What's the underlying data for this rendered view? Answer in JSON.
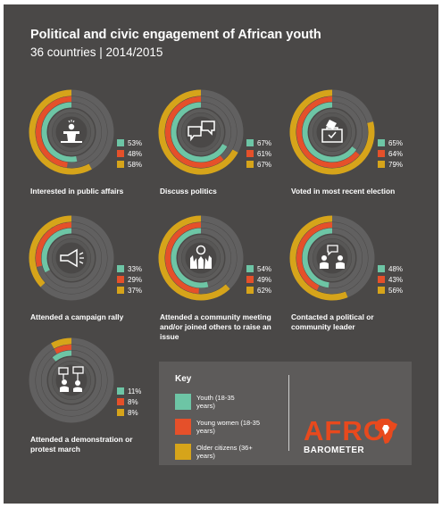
{
  "title": "Political and civic engagement of African youth",
  "subtitle": "36 countries | 2014/2015",
  "colors": {
    "background": "#4a4847",
    "youth": "#6dc5a5",
    "young_women": "#e5502a",
    "older": "#d6a41a",
    "track": "#616060"
  },
  "chart_data": [
    {
      "type": "donut",
      "label": "Interested in public affairs",
      "icon": "speaker-podium-icon",
      "values": {
        "youth": 53,
        "young_women": 48,
        "older": 58
      },
      "value_labels": [
        "53%",
        "48%",
        "58%"
      ]
    },
    {
      "type": "donut",
      "label": "Discuss politics",
      "icon": "speech-bubbles-icon",
      "values": {
        "youth": 67,
        "young_women": 61,
        "older": 67
      },
      "value_labels": [
        "67%",
        "61%",
        "67%"
      ]
    },
    {
      "type": "donut",
      "label": "Voted in most recent election",
      "icon": "ballot-box-icon",
      "values": {
        "youth": 65,
        "young_women": 64,
        "older": 79
      },
      "value_labels": [
        "65%",
        "64%",
        "79%"
      ]
    },
    {
      "type": "donut",
      "label": "Attended a campaign rally",
      "icon": "megaphone-icon",
      "values": {
        "youth": 33,
        "young_women": 29,
        "older": 37
      },
      "value_labels": [
        "33%",
        "29%",
        "37%"
      ]
    },
    {
      "type": "donut",
      "label": "Attended a community meeting and/or joined others to raise an issue",
      "icon": "raised-hands-icon",
      "values": {
        "youth": 54,
        "young_women": 49,
        "older": 62
      },
      "value_labels": [
        "54%",
        "49%",
        "62%"
      ]
    },
    {
      "type": "donut",
      "label": "Contacted a political or community leader",
      "icon": "conversation-icon",
      "values": {
        "youth": 48,
        "young_women": 43,
        "older": 56
      },
      "value_labels": [
        "48%",
        "43%",
        "56%"
      ]
    },
    {
      "type": "donut",
      "label": "Attended a demonstration or protest march",
      "icon": "protest-signs-icon",
      "values": {
        "youth": 11,
        "young_women": 8,
        "older": 8
      },
      "value_labels": [
        "11%",
        "8%",
        "8%"
      ]
    }
  ],
  "key": {
    "title": "Key",
    "items": [
      {
        "label": "Youth (18-35 years)",
        "color": "#6dc5a5"
      },
      {
        "label": "Young women (18-35 years)",
        "color": "#e5502a"
      },
      {
        "label": "Older citizens (36+ years)",
        "color": "#d6a41a"
      }
    ]
  },
  "logo": {
    "line1": "AFRO",
    "line2": "BAROMETER"
  }
}
